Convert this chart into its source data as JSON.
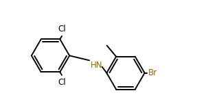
{
  "background_color": "#ffffff",
  "bond_color": "#000000",
  "label_color_cl": "#000000",
  "label_color_br": "#996600",
  "label_color_hn": "#996600",
  "line_width": 1.4,
  "figsize": [
    3.16,
    1.55
  ],
  "dpi": 100,
  "r": 0.72,
  "xlim": [
    0.3,
    7.8
  ],
  "ylim": [
    2.8,
    6.8
  ]
}
